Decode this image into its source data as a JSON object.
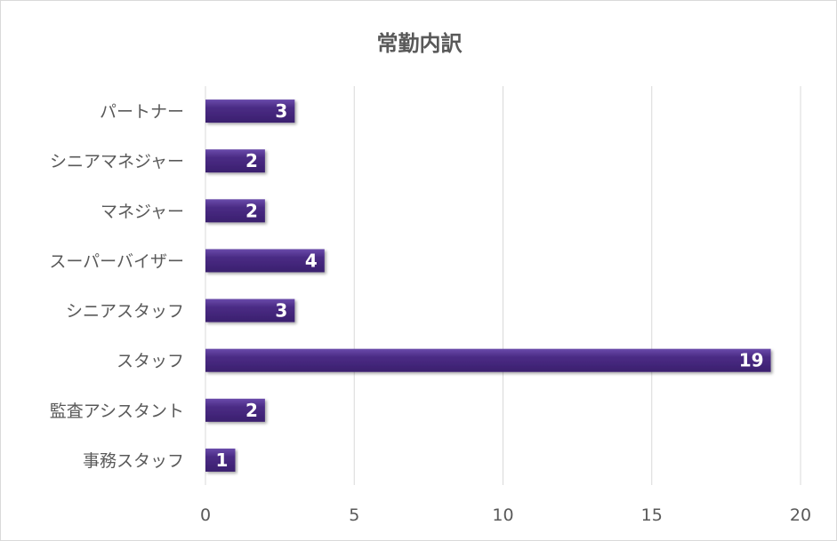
{
  "chart_data": {
    "type": "bar",
    "orientation": "horizontal",
    "title": "常勤内訳",
    "categories": [
      "パートナー",
      "シニアマネジャー",
      "マネジャー",
      "スーパーバイザー",
      "シニアスタッフ",
      "スタッフ",
      "監査アシスタント",
      "事務スタッフ"
    ],
    "values": [
      3,
      2,
      2,
      4,
      3,
      19,
      2,
      1
    ],
    "xlabel": "",
    "ylabel": "",
    "xlim": [
      0,
      20
    ],
    "xticks": [
      0,
      5,
      10,
      15,
      20
    ],
    "grid": true,
    "data_labels": true,
    "legend": "none",
    "bar_color": "#4b2c85"
  }
}
